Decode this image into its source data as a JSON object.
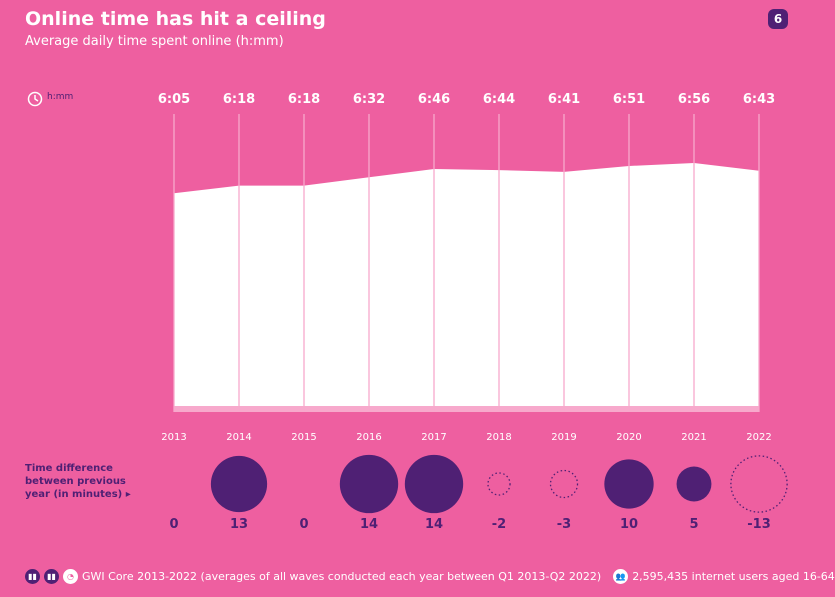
{
  "header": {
    "title": "Online time has hit a ceiling",
    "subtitle": "Average daily time spent online (h:mm)",
    "page_number": "6",
    "unit_label": "h:mm"
  },
  "chart_data": [
    {
      "type": "area",
      "title": "Online time has hit a ceiling",
      "subtitle": "Average daily time spent online (h:mm)",
      "x": [
        "2013",
        "2014",
        "2015",
        "2016",
        "2017",
        "2018",
        "2019",
        "2020",
        "2021",
        "2022"
      ],
      "values_label": [
        "6:05",
        "6:18",
        "6:18",
        "6:32",
        "6:46",
        "6:44",
        "6:41",
        "6:51",
        "6:56",
        "6:43"
      ],
      "values_minutes": [
        365,
        378,
        378,
        392,
        406,
        404,
        401,
        411,
        416,
        403
      ],
      "ylim": [
        0,
        420
      ],
      "colors": {
        "fill": "#FFFFFF",
        "background": "#EE5FA0",
        "lines": "#F7A9CC"
      }
    },
    {
      "type": "bubble",
      "label": "Time difference between previous year (in minutes)",
      "x": [
        "2013",
        "2014",
        "2015",
        "2016",
        "2017",
        "2018",
        "2019",
        "2020",
        "2021",
        "2022"
      ],
      "values": [
        0,
        13,
        0,
        14,
        14,
        -2,
        -3,
        10,
        5,
        -13
      ],
      "colors": {
        "positive": "#4F2074",
        "negative": "dotted outline #4F2074"
      }
    }
  ],
  "footer": {
    "source": "GWI Core 2013-2022 (averages of all waves conducted each year between Q1 2013-Q2 2022)",
    "base": "2,595,435 internet users aged 16-64"
  }
}
